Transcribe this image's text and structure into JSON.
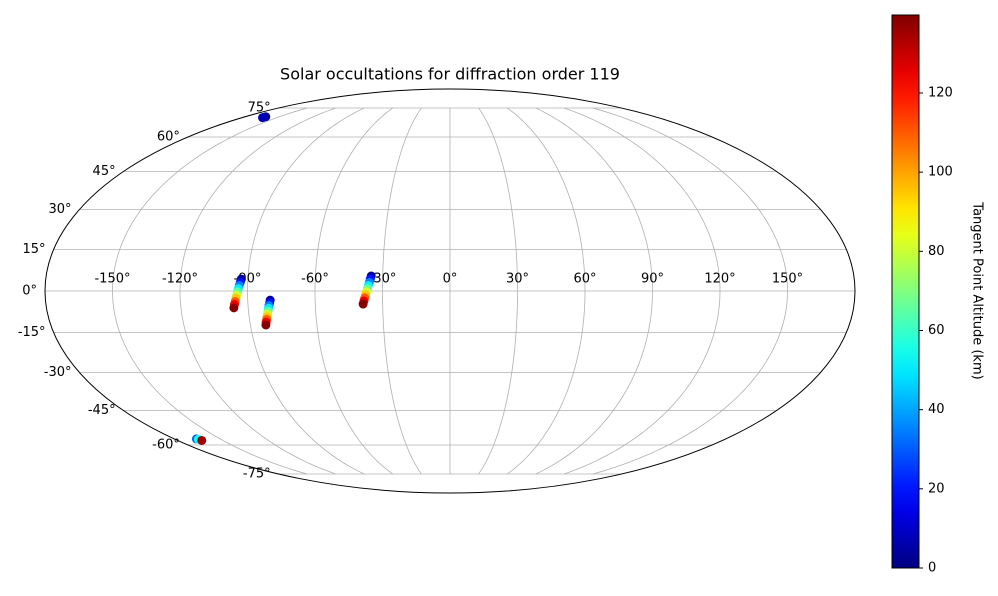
{
  "chart_data": {
    "type": "scatter",
    "projection": "mollweide",
    "title": "Solar occultations for diffraction order 119",
    "x": [
      -162,
      -162.3,
      -92.9,
      -93.3,
      -93.7,
      -94.1,
      -94.5,
      -94.8,
      -95.2,
      -95.6,
      -96.0,
      -96.4,
      -80.0,
      -80.3,
      -80.7,
      -81.0,
      -81.3,
      -81.7,
      -82.0,
      -82.3,
      -82.7,
      -83.0,
      -35.1,
      -35.5,
      -35.9,
      -36.3,
      -36.7,
      -37.1,
      -37.5,
      -37.9,
      -38.3,
      -38.7,
      -165.5,
      -164.8,
      -164.0
    ],
    "y": [
      70.1,
      69.6,
      4.3,
      3.1,
      2.0,
      0.8,
      -0.3,
      -1.5,
      -2.6,
      -3.8,
      -4.9,
      -6.1,
      -3.3,
      -4.3,
      -5.3,
      -6.3,
      -7.3,
      -8.3,
      -9.3,
      -10.3,
      -11.3,
      -12.3,
      5.4,
      4.3,
      3.1,
      2.0,
      0.9,
      -0.2,
      -1.3,
      -2.5,
      -3.6,
      -4.7,
      -57.2,
      -57.4,
      -57.9
    ],
    "color_values": [
      3,
      8,
      5,
      20,
      35,
      50,
      65,
      80,
      95,
      110,
      125,
      139,
      5,
      20,
      35,
      50,
      65,
      80,
      95,
      110,
      125,
      139,
      5,
      20,
      35,
      50,
      65,
      80,
      95,
      110,
      125,
      139,
      30,
      55,
      135
    ],
    "colormap": "jet",
    "xlim": [
      -180,
      180
    ],
    "ylim": [
      -90,
      90
    ],
    "xticks": [
      {
        "value": -150,
        "label": "-150°"
      },
      {
        "value": -120,
        "label": "-120°"
      },
      {
        "value": -90,
        "label": "-90°"
      },
      {
        "value": -60,
        "label": "-60°"
      },
      {
        "value": -30,
        "label": "-30°"
      },
      {
        "value": 0,
        "label": "0°"
      },
      {
        "value": 30,
        "label": "30°"
      },
      {
        "value": 60,
        "label": "60°"
      },
      {
        "value": 90,
        "label": "90°"
      },
      {
        "value": 120,
        "label": "120°"
      },
      {
        "value": 150,
        "label": "150°"
      }
    ],
    "yticks": [
      {
        "value": -75,
        "label": "-75°"
      },
      {
        "value": -60,
        "label": "-60°"
      },
      {
        "value": -45,
        "label": "-45°"
      },
      {
        "value": -30,
        "label": "-30°"
      },
      {
        "value": -15,
        "label": "-15°"
      },
      {
        "value": 0,
        "label": "0°"
      },
      {
        "value": 15,
        "label": "15°"
      },
      {
        "value": 30,
        "label": "30°"
      },
      {
        "value": 45,
        "label": "45°"
      },
      {
        "value": 60,
        "label": "60°"
      },
      {
        "value": 75,
        "label": "75°"
      }
    ],
    "grid": true,
    "colorbar": {
      "label": "Tangent Point Altitude (km)",
      "clim": [
        0,
        139.7
      ],
      "ticks": [
        0,
        20,
        40,
        60,
        80,
        100,
        120
      ]
    }
  }
}
